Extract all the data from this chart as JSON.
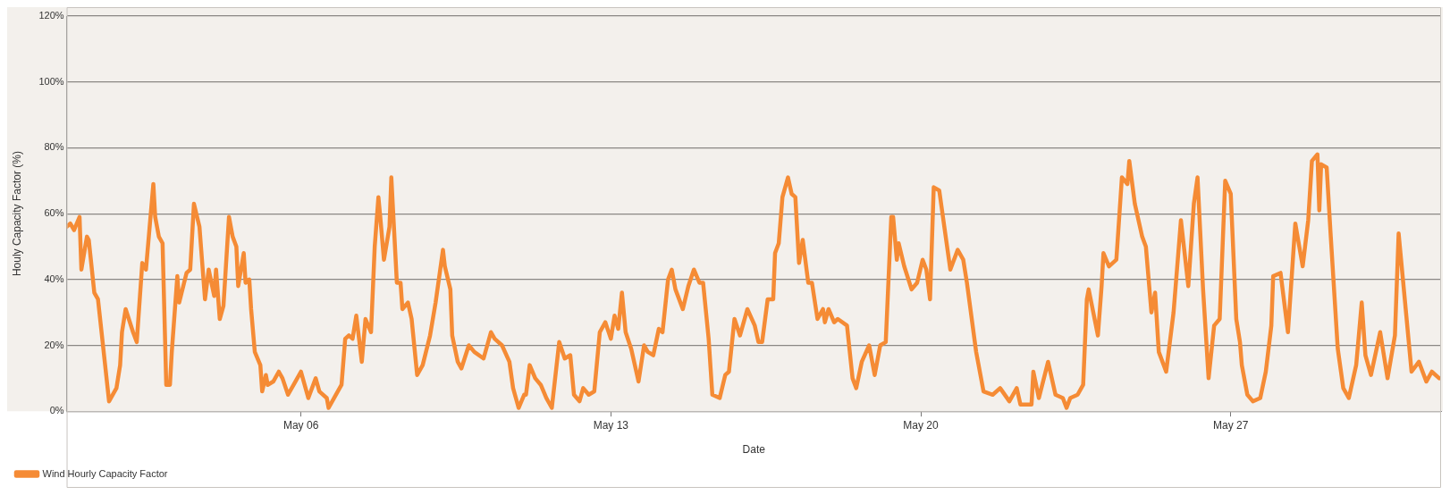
{
  "chart_data": {
    "type": "line",
    "xlabel": "Date",
    "ylabel": "Houly Capacity Factor (%)",
    "xlim": [
      "--04-30T17:00",
      "--05-31T18:00"
    ],
    "xticks": [
      {
        "value": "--05-06",
        "label": "May 06"
      },
      {
        "value": "--05-13",
        "label": "May 13"
      },
      {
        "value": "--05-20",
        "label": "May 20"
      },
      {
        "value": "--05-27",
        "label": "May 27"
      }
    ],
    "ylim": [
      0,
      120
    ],
    "yticks": [
      {
        "value": 0,
        "label": "0%"
      },
      {
        "value": 20,
        "label": "20%"
      },
      {
        "value": 40,
        "label": "40%"
      },
      {
        "value": 60,
        "label": "60%"
      },
      {
        "value": 80,
        "label": "80%"
      },
      {
        "value": 100,
        "label": "100%"
      },
      {
        "value": 120,
        "label": "120%"
      }
    ],
    "grid": "y",
    "legend": "bottom left",
    "marker": "none",
    "line_style": "solid",
    "series": [
      {
        "name": "Wind Hourly Capacity Factor",
        "color": "#f58b35",
        "x": [
          "--04-30T17:00",
          "--04-30T19:00",
          "--04-30T21:00",
          "--05-01T00:00",
          "--05-01T01:00",
          "--05-01T04:00",
          "--05-01T05:00",
          "--05-01T08:00",
          "--05-01T10:00",
          "--05-01T16:00",
          "--05-01T20:00",
          "--05-01T22:00",
          "--05-01T23:00",
          "--05-02T01:00",
          "--05-02T05:00",
          "--05-02T07:00",
          "--05-02T10:00",
          "--05-02T12:00",
          "--05-02T16:00",
          "--05-02T17:00",
          "--05-02T19:00",
          "--05-02T21:00",
          "--05-02T23:00",
          "--05-03T01:00",
          "--05-03T02:00",
          "--05-03T05:00",
          "--05-03T06:00",
          "--05-03T10:00",
          "--05-03T12:00",
          "--05-03T14:00",
          "--05-03T17:00",
          "--05-03T20:00",
          "--05-03T22:00",
          "--05-04T01:00",
          "--05-04T02:00",
          "--05-04T04:00",
          "--05-04T06:00",
          "--05-04T09:00",
          "--05-04T11:00",
          "--05-04T13:00",
          "--05-04T14:00",
          "--05-04T17:00",
          "--05-04T18:00",
          "--05-04T20:00",
          "--05-04T21:00",
          "--05-04T23:00",
          "--05-05T02:00",
          "--05-05T03:00",
          "--05-05T05:00",
          "--05-05T06:00",
          "--05-05T09:00",
          "--05-05T12:00",
          "--05-05T14:00",
          "--05-05T17:00",
          "--05-05T21:00",
          "--05-06T00:00",
          "--05-06T04:00",
          "--05-06T08:00",
          "--05-06T10:00",
          "--05-06T14:00",
          "--05-06T15:00",
          "--05-06T18:00",
          "--05-06T22:00",
          "--05-07T00:00",
          "--05-07T02:00",
          "--05-07T04:00",
          "--05-07T06:00",
          "--05-07T09:00",
          "--05-07T11:00",
          "--05-07T14:00",
          "--05-07T16:00",
          "--05-07T18:00",
          "--05-07T19:00",
          "--05-07T21:00",
          "--05-08T00:00",
          "--05-08T01:00",
          "--05-08T04:00",
          "--05-08T06:00",
          "--05-08T07:00",
          "--05-08T10:00",
          "--05-08T12:00",
          "--05-08T15:00",
          "--05-08T18:00",
          "--05-08T22:00",
          "--05-09T01:00",
          "--05-09T05:00",
          "--05-09T06:00",
          "--05-09T09:00",
          "--05-09T10:00",
          "--05-09T13:00",
          "--05-09T15:00",
          "--05-09T19:00",
          "--05-09T22:00",
          "--05-10T03:00",
          "--05-10T07:00",
          "--05-10T09:00",
          "--05-10T13:00",
          "--05-10T17:00",
          "--05-10T19:00",
          "--05-10T22:00",
          "--05-11T01:00",
          "--05-11T02:00",
          "--05-11T04:00",
          "--05-11T07:00",
          "--05-11T10:00",
          "--05-11T13:00",
          "--05-11T16:00",
          "--05-11T20:00",
          "--05-11T23:00",
          "--05-12T02:00",
          "--05-12T04:00",
          "--05-12T07:00",
          "--05-12T09:00",
          "--05-12T12:00",
          "--05-12T15:00",
          "--05-12T18:00",
          "--05-12T21:00",
          "--05-13T00:00",
          "--05-13T02:00",
          "--05-13T04:00",
          "--05-13T06:00",
          "--05-13T08:00",
          "--05-13T11:00",
          "--05-13T15:00",
          "--05-13T18:00",
          "--05-13T20:00",
          "--05-13T23:00",
          "--05-14T02:00",
          "--05-14T04:00",
          "--05-14T07:00",
          "--05-14T09:00",
          "--05-14T11:00",
          "--05-14T15:00",
          "--05-14T18:00",
          "--05-14T21:00",
          "--05-15T00:00",
          "--05-15T02:00",
          "--05-15T05:00",
          "--05-15T07:00",
          "--05-15T11:00",
          "--05-15T14:00",
          "--05-15T16:00",
          "--05-15T19:00",
          "--05-15T22:00",
          "--05-16T02:00",
          "--05-16T06:00",
          "--05-16T08:00",
          "--05-16T10:00",
          "--05-16T13:00",
          "--05-16T16:00",
          "--05-16T17:00",
          "--05-16T19:00",
          "--05-16T21:00",
          "--05-17T00:00",
          "--05-17T02:00",
          "--05-17T04:00",
          "--05-17T06:00",
          "--05-17T08:00",
          "--05-17T11:00",
          "--05-17T13:00",
          "--05-17T16:00",
          "--05-17T19:00",
          "--05-17T20:00",
          "--05-17T22:00",
          "--05-18T01:00",
          "--05-18T03:00",
          "--05-18T08:00",
          "--05-18T11:00",
          "--05-18T13:00",
          "--05-18T16:00",
          "--05-18T20:00",
          "--05-18T23:00",
          "--05-19T02:00",
          "--05-19T05:00",
          "--05-19T08:00",
          "--05-19T09:00",
          "--05-19T11:00",
          "--05-19T12:00",
          "--05-19T15:00",
          "--05-19T19:00",
          "--05-19T22:00",
          "--05-20T01:00",
          "--05-20T03:00",
          "--05-20T05:00",
          "--05-20T07:00",
          "--05-20T10:00",
          "--05-20T12:00",
          "--05-20T16:00",
          "--05-20T20:00",
          "--05-20T23:00",
          "--05-21T01:00",
          "--05-21T06:00",
          "--05-21T10:00",
          "--05-21T15:00",
          "--05-21T19:00",
          "--05-22T00:00",
          "--05-22T04:00",
          "--05-22T06:00",
          "--05-22T12:00",
          "--05-22T13:00",
          "--05-22T16:00",
          "--05-22T21:00",
          "--05-23T01:00",
          "--05-23T05:00",
          "--05-23T07:00",
          "--05-23T09:00",
          "--05-23T13:00",
          "--05-23T16:00",
          "--05-23T18:00",
          "--05-23T19:00",
          "--05-24T00:00",
          "--05-24T02:00",
          "--05-24T03:00",
          "--05-24T06:00",
          "--05-24T10:00",
          "--05-24T13:00",
          "--05-24T16:00",
          "--05-24T17:00",
          "--05-24T20:00",
          "--05-25T00:00",
          "--05-25T02:00",
          "--05-25T05:00",
          "--05-25T07:00",
          "--05-25T09:00",
          "--05-25T13:00",
          "--05-25T17:00",
          "--05-25T21:00",
          "--05-26T01:00",
          "--05-26T04:00",
          "--05-26T06:00",
          "--05-26T09:00",
          "--05-26T12:00",
          "--05-26T15:00",
          "--05-26T18:00",
          "--05-26T21:00",
          "--05-27T00:00",
          "--05-27T03:00",
          "--05-27T05:00",
          "--05-27T06:00",
          "--05-27T09:00",
          "--05-27T12:00",
          "--05-27T16:00",
          "--05-27T19:00",
          "--05-27T22:00",
          "--05-27T23:00",
          "--05-28T03:00",
          "--05-28T07:00",
          "--05-28T11:00",
          "--05-28T15:00",
          "--05-28T18:00",
          "--05-28T20:00",
          "--05-28T23:00",
          "--05-29T00:00",
          "--05-29T01:00",
          "--05-29T04:00",
          "--05-29T06:00",
          "--05-29T10:00",
          "--05-29T13:00",
          "--05-29T16:00",
          "--05-29T20:00",
          "--05-29T23:00",
          "--05-30T01:00",
          "--05-30T04:00",
          "--05-30T09:00",
          "--05-30T13:00",
          "--05-30T17:00",
          "--05-30T19:00",
          "--05-30T22:00",
          "--05-31T02:00",
          "--05-31T06:00",
          "--05-31T10:00",
          "--05-31T13:00",
          "--05-31T17:00"
        ],
        "values": [
          56,
          57,
          55,
          59,
          43,
          53,
          52,
          36,
          34,
          3,
          7,
          14,
          24,
          31,
          24,
          21,
          45,
          43,
          69,
          59,
          53,
          51,
          8,
          8,
          18,
          41,
          33,
          42,
          43,
          63,
          56,
          34,
          43,
          35,
          43,
          28,
          32,
          59,
          53,
          50,
          38,
          48,
          39,
          40,
          31,
          18,
          14,
          6,
          11,
          8,
          9,
          12,
          10,
          5,
          9,
          12,
          4,
          10,
          6,
          4,
          1,
          4,
          8,
          22,
          23,
          22,
          29,
          15,
          28,
          24,
          50,
          65,
          59,
          46,
          56,
          71,
          39,
          39,
          31,
          33,
          28,
          11,
          14,
          23,
          33,
          49,
          44,
          37,
          23,
          15,
          13,
          20,
          18,
          16,
          24,
          22,
          20,
          15,
          7,
          1,
          5,
          5,
          14,
          10,
          8,
          4,
          1,
          21,
          16,
          17,
          5,
          3,
          7,
          5,
          6,
          24,
          27,
          22,
          29,
          25,
          36,
          24,
          19,
          9,
          20,
          18,
          17,
          25,
          24,
          40,
          43,
          37,
          31,
          38,
          43,
          39,
          39,
          22,
          5,
          4,
          11,
          12,
          28,
          23,
          31,
          26,
          21,
          21,
          34,
          34,
          48,
          51,
          65,
          71,
          66,
          65,
          45,
          52,
          39,
          39,
          28,
          31,
          27,
          31,
          27,
          28,
          26,
          10,
          7,
          15,
          20,
          11,
          20,
          21,
          59,
          59,
          46,
          51,
          44,
          37,
          39,
          46,
          43,
          34,
          68,
          67,
          59,
          43,
          49,
          46,
          39,
          18,
          6,
          5,
          7,
          3,
          7,
          2,
          2,
          12,
          4,
          15,
          5,
          4,
          1,
          4,
          5,
          8,
          34,
          37,
          23,
          38,
          48,
          44,
          46,
          71,
          69,
          76,
          63,
          53,
          50,
          30,
          36,
          18,
          12,
          30,
          58,
          38,
          63,
          71,
          37,
          10,
          26,
          28,
          70,
          66,
          28,
          21,
          14,
          5,
          3,
          4,
          12,
          26,
          41,
          42,
          24,
          57,
          44,
          58,
          76,
          78,
          61,
          75,
          74,
          55,
          19,
          7,
          4,
          14,
          33,
          17,
          11,
          24,
          10,
          23,
          54,
          36,
          12,
          15,
          9,
          12,
          10
        ]
      }
    ]
  }
}
